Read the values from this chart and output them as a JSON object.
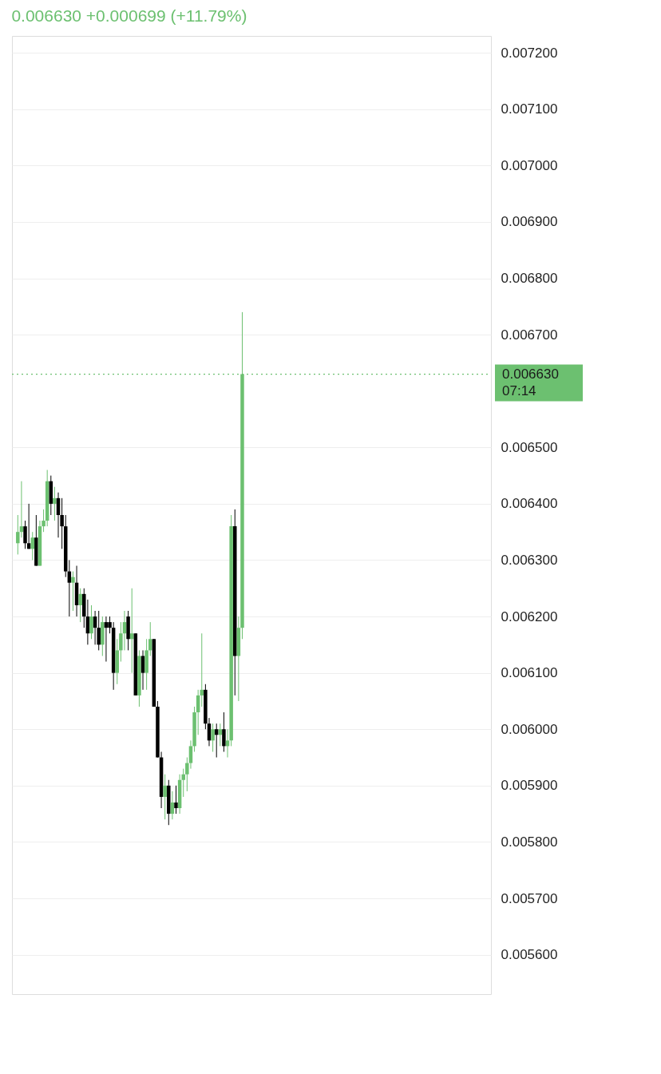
{
  "chart_data": {
    "type": "candlestick",
    "subtitle": "0.006630 +0.000699 (+11.79%)",
    "categories": [
      null,
      null,
      null,
      null,
      null,
      null,
      null,
      null,
      null,
      null,
      null,
      null,
      null,
      null,
      null,
      null,
      null,
      null,
      null,
      null,
      null,
      null,
      null,
      null,
      null,
      null,
      null,
      null,
      null,
      null,
      null,
      null,
      null,
      null,
      null,
      null,
      null,
      null,
      null,
      null,
      null,
      null,
      null,
      null,
      null,
      null,
      null,
      null,
      null,
      null,
      null,
      null,
      null,
      null,
      null,
      null,
      null,
      null,
      null,
      null,
      null,
      null,
      null,
      null,
      null,
      null,
      null,
      null,
      null,
      null,
      null,
      null,
      null,
      null,
      null,
      null,
      null,
      null,
      null,
      null,
      null,
      null,
      null,
      null,
      null,
      null,
      null,
      null,
      null,
      null,
      null,
      null,
      null,
      null,
      null,
      null,
      null,
      null,
      null,
      null,
      null,
      null,
      null,
      null,
      null,
      null,
      null,
      null,
      null,
      null,
      null,
      null,
      null,
      null,
      null,
      null,
      null,
      null,
      null,
      null,
      null,
      null,
      null,
      null,
      null,
      null,
      null,
      null
    ],
    "ohlc": [
      [
        0.00633,
        0.00638,
        0.00631,
        0.00635
      ],
      [
        0.00635,
        0.00644,
        0.00634,
        0.00636
      ],
      [
        0.00636,
        0.00637,
        0.00632,
        0.00633
      ],
      [
        0.00633,
        0.0064,
        0.00632,
        0.00632
      ],
      [
        0.00632,
        0.00635,
        0.0063,
        0.00634
      ],
      [
        0.00634,
        0.00638,
        0.00629,
        0.00629
      ],
      [
        0.00629,
        0.00637,
        0.00629,
        0.00636
      ],
      [
        0.00636,
        0.00639,
        0.00635,
        0.00637
      ],
      [
        0.00637,
        0.00646,
        0.00636,
        0.00644
      ],
      [
        0.00644,
        0.00645,
        0.00638,
        0.0064
      ],
      [
        0.0064,
        0.00643,
        0.00637,
        0.00641
      ],
      [
        0.00641,
        0.00642,
        0.00634,
        0.00638
      ],
      [
        0.00638,
        0.00641,
        0.00632,
        0.00636
      ],
      [
        0.00636,
        0.00638,
        0.00627,
        0.00628
      ],
      [
        0.00628,
        0.0063,
        0.0062,
        0.00626
      ],
      [
        0.00626,
        0.00628,
        0.00621,
        0.00627
      ],
      [
        0.00626,
        0.00629,
        0.0062,
        0.00622
      ],
      [
        0.00622,
        0.00625,
        0.00619,
        0.00624
      ],
      [
        0.00624,
        0.00625,
        0.00618,
        0.0062
      ],
      [
        0.0062,
        0.00623,
        0.00615,
        0.00617
      ],
      [
        0.00617,
        0.00622,
        0.00616,
        0.0062
      ],
      [
        0.0062,
        0.00621,
        0.00615,
        0.00618
      ],
      [
        0.00618,
        0.00621,
        0.00614,
        0.00615
      ],
      [
        0.00615,
        0.0062,
        0.00613,
        0.00619
      ],
      [
        0.00619,
        0.0062,
        0.00612,
        0.00618
      ],
      [
        0.00619,
        0.0062,
        0.00617,
        0.00618
      ],
      [
        0.00618,
        0.00619,
        0.00607,
        0.0061
      ],
      [
        0.0061,
        0.00616,
        0.00608,
        0.00614
      ],
      [
        0.00614,
        0.00619,
        0.00612,
        0.00617
      ],
      [
        0.00617,
        0.00621,
        0.00614,
        0.00619
      ],
      [
        0.0062,
        0.00621,
        0.00614,
        0.00616
      ],
      [
        0.00616,
        0.00625,
        0.0061,
        0.00617
      ],
      [
        0.00617,
        0.00617,
        0.00606,
        0.00606
      ],
      [
        0.00606,
        0.00614,
        0.00604,
        0.00613
      ],
      [
        0.00613,
        0.00614,
        0.00607,
        0.0061
      ],
      [
        0.0061,
        0.00616,
        0.00607,
        0.00614
      ],
      [
        0.00614,
        0.00619,
        0.00613,
        0.00616
      ],
      [
        0.00616,
        0.00616,
        0.00604,
        0.00604
      ],
      [
        0.00604,
        0.00605,
        0.00595,
        0.00595
      ],
      [
        0.00595,
        0.00596,
        0.00586,
        0.00588
      ],
      [
        0.00588,
        0.00592,
        0.00584,
        0.0059
      ],
      [
        0.0059,
        0.00591,
        0.00583,
        0.00585
      ],
      [
        0.00585,
        0.00589,
        0.00584,
        0.00587
      ],
      [
        0.00587,
        0.0059,
        0.00585,
        0.00586
      ],
      [
        0.00586,
        0.00592,
        0.00585,
        0.00591
      ],
      [
        0.00591,
        0.00593,
        0.00588,
        0.00592
      ],
      [
        0.00592,
        0.00595,
        0.00589,
        0.00594
      ],
      [
        0.00594,
        0.00598,
        0.00593,
        0.00597
      ],
      [
        0.00597,
        0.00604,
        0.00596,
        0.00603
      ],
      [
        0.00603,
        0.00607,
        0.00599,
        0.00606
      ],
      [
        0.00606,
        0.00617,
        0.00604,
        0.00607
      ],
      [
        0.00607,
        0.00608,
        0.006,
        0.00601
      ],
      [
        0.00601,
        0.00602,
        0.00597,
        0.00598
      ],
      [
        0.00598,
        0.00601,
        0.00596,
        0.006
      ],
      [
        0.006,
        0.00601,
        0.00595,
        0.00599
      ],
      [
        0.00599,
        0.00601,
        0.00597,
        0.006
      ],
      [
        0.006,
        0.00603,
        0.00596,
        0.00597
      ],
      [
        0.00597,
        0.006,
        0.00595,
        0.00598
      ],
      [
        0.00598,
        0.00638,
        0.00597,
        0.00636
      ],
      [
        0.00636,
        0.00639,
        0.00606,
        0.00613
      ],
      [
        0.00613,
        0.0062,
        0.00605,
        0.00618
      ],
      [
        0.00618,
        0.00674,
        0.00616,
        0.00663
      ],
      null,
      null,
      null,
      null,
      null,
      null,
      null,
      null,
      null,
      null,
      null,
      null,
      null,
      null,
      null,
      null,
      null,
      null,
      null,
      null,
      null,
      null,
      null,
      null,
      null,
      null,
      null,
      null,
      null,
      null,
      null,
      null,
      null,
      null,
      null,
      null,
      null,
      null,
      null,
      null,
      null,
      null,
      null,
      null,
      null,
      null,
      null,
      null,
      null,
      null,
      null,
      null,
      null,
      null,
      null,
      null,
      null,
      null,
      null,
      null,
      null,
      null,
      null,
      null,
      null,
      null
    ],
    "colors": [
      "#6cc070",
      "#6cc070",
      "#000000",
      "#000000",
      "#6cc070",
      "#000000",
      "#6cc070",
      "#6cc070",
      "#6cc070",
      "#000000",
      "#6cc070",
      "#000000",
      "#000000",
      "#000000",
      "#000000",
      "#6cc070",
      "#000000",
      "#6cc070",
      "#000000",
      "#000000",
      "#6cc070",
      "#000000",
      "#000000",
      "#6cc070",
      "#000000",
      "#000000",
      "#000000",
      "#6cc070",
      "#6cc070",
      "#6cc070",
      "#000000",
      "#6cc070",
      "#000000",
      "#6cc070",
      "#000000",
      "#6cc070",
      "#6cc070",
      "#000000",
      "#000000",
      "#000000",
      "#6cc070",
      "#000000",
      "#6cc070",
      "#000000",
      "#6cc070",
      "#6cc070",
      "#6cc070",
      "#6cc070",
      "#6cc070",
      "#6cc070",
      "#6cc070",
      "#000000",
      "#000000",
      "#6cc070",
      "#000000",
      "#6cc070",
      "#000000",
      "#6cc070",
      "#6cc070",
      "#000000",
      "#6cc070",
      "#6cc070",
      null,
      null,
      null,
      null,
      null,
      null,
      null,
      null,
      null,
      null,
      null,
      null,
      null,
      null,
      null,
      null,
      null,
      null,
      null,
      null,
      null,
      null,
      null,
      null,
      null,
      null,
      null,
      null,
      null,
      null,
      null,
      null,
      null,
      null,
      null,
      null,
      null,
      null,
      null,
      null,
      null,
      null,
      null,
      null,
      null,
      null,
      null,
      null,
      null,
      null,
      null,
      null,
      null,
      null,
      null,
      null,
      null,
      null,
      null,
      null,
      null,
      null,
      null,
      null,
      null,
      null
    ],
    "ylim": [
      0.00553,
      0.00723
    ],
    "yticks": [
      {
        "value": 0.0056,
        "label": "0.005600"
      },
      {
        "value": 0.0057,
        "label": "0.005700"
      },
      {
        "value": 0.0058,
        "label": "0.005800"
      },
      {
        "value": 0.0059,
        "label": "0.005900"
      },
      {
        "value": 0.006,
        "label": "0.006000"
      },
      {
        "value": 0.0061,
        "label": "0.006100"
      },
      {
        "value": 0.0062,
        "label": "0.006200"
      },
      {
        "value": 0.0063,
        "label": "0.006300"
      },
      {
        "value": 0.0064,
        "label": "0.006400"
      },
      {
        "value": 0.0065,
        "label": "0.006500"
      },
      {
        "value": 0.0067,
        "label": "0.006700"
      },
      {
        "value": 0.0068,
        "label": "0.006800"
      },
      {
        "value": 0.0069,
        "label": "0.006900"
      },
      {
        "value": 0.007,
        "label": "0.007000"
      },
      {
        "value": 0.0071,
        "label": "0.007100"
      },
      {
        "value": 0.0072,
        "label": "0.007200"
      }
    ],
    "ref_lines": [
      {
        "axis": "y",
        "value": 0.00663,
        "label": "0.006630",
        "color": "#6cc070",
        "line_style": "dotted"
      }
    ],
    "annotations": [
      "07:14"
    ],
    "grid": "y",
    "tick_labels": "y"
  }
}
